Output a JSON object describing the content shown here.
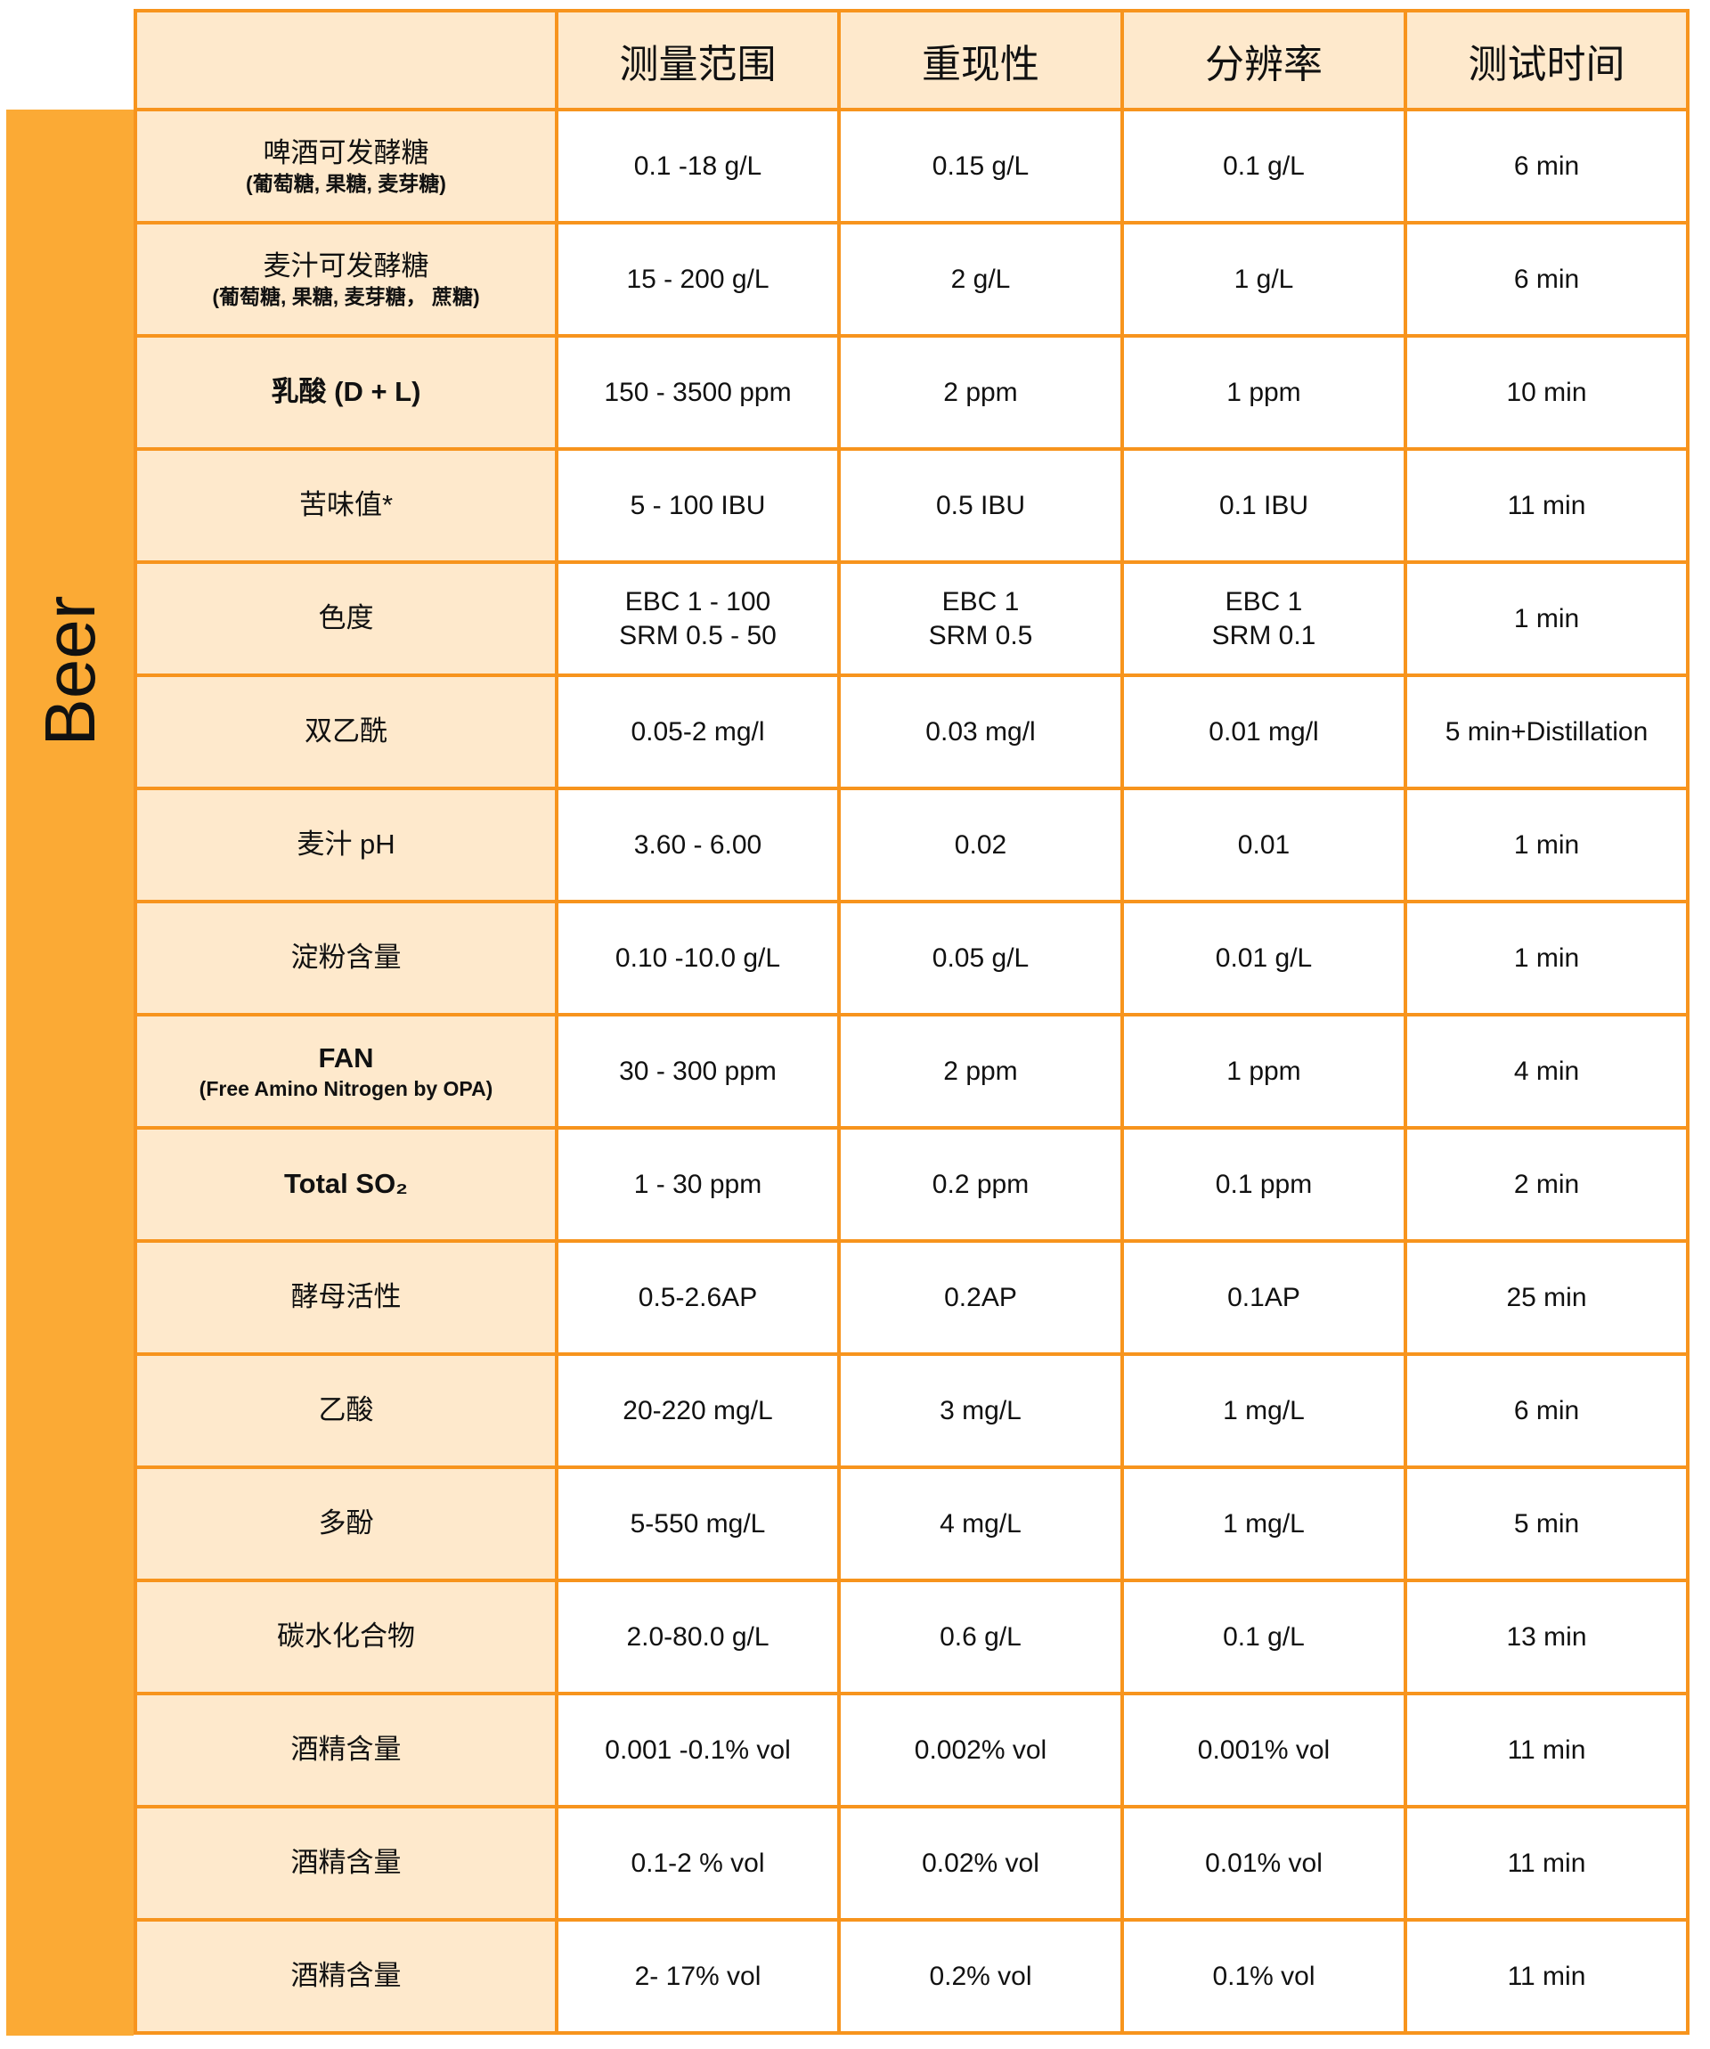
{
  "category_label": "Beer",
  "colors": {
    "border": "#f7941d",
    "category_bg": "#fbaa35",
    "header_bg": "#fee9cc"
  },
  "headers": [
    "",
    "测量范围",
    "重现性",
    "分辨率",
    "测试时间"
  ],
  "rows": [
    {
      "name": "啤酒可发酵糖",
      "sub": "(葡萄糖, 果糖, 麦芽糖)",
      "range": "0.1 -18 g/L",
      "repeat": "0.15 g/L",
      "resolution": "0.1 g/L",
      "time": "6 min"
    },
    {
      "name": "麦汁可发酵糖",
      "sub": "(葡萄糖, 果糖, 麦芽糖， 蔗糖)",
      "range": "15 - 200 g/L",
      "repeat": "2 g/L",
      "resolution": "1 g/L",
      "time": "6 min"
    },
    {
      "name": "乳酸 (D + L)",
      "range": "150 - 3500 ppm",
      "repeat": "2 ppm",
      "resolution": "1 ppm",
      "time": "10 min"
    },
    {
      "name": "苦味值*",
      "range": "5 - 100 IBU",
      "repeat": "0.5 IBU",
      "resolution": "0.1 IBU",
      "time": "11 min"
    },
    {
      "name": "色度",
      "range": "EBC 1 - 100",
      "range2": "SRM 0.5 - 50",
      "repeat": "EBC 1",
      "repeat2": "SRM 0.5",
      "resolution": "EBC 1",
      "resolution2": "SRM 0.1",
      "time": "1 min"
    },
    {
      "name": "双乙酰",
      "range": "0.05-2 mg/l",
      "repeat": "0.03 mg/l",
      "resolution": "0.01 mg/l",
      "time": "5 min+Distillation"
    },
    {
      "name": "麦汁 pH",
      "range": "3.60 - 6.00",
      "repeat": "0.02",
      "resolution": "0.01",
      "time": "1 min"
    },
    {
      "name": "淀粉含量",
      "range": "0.10 -10.0 g/L",
      "repeat": "0.05 g/L",
      "resolution": "0.01 g/L",
      "time": "1 min"
    },
    {
      "name": "FAN",
      "sub": "(Free Amino Nitrogen by OPA)",
      "range": "30 - 300 ppm",
      "repeat": "2 ppm",
      "resolution": "1 ppm",
      "time": "4 min"
    },
    {
      "name": "Total SO₂",
      "range": "1 - 30 ppm",
      "repeat": "0.2 ppm",
      "resolution": "0.1 ppm",
      "time": "2 min"
    },
    {
      "name": "酵母活性",
      "range": "0.5-2.6AP",
      "repeat": "0.2AP",
      "resolution": "0.1AP",
      "time": "25 min"
    },
    {
      "name": "乙酸",
      "range": "20-220 mg/L",
      "repeat": "3 mg/L",
      "resolution": "1 mg/L",
      "time": "6 min"
    },
    {
      "name": "多酚",
      "range": "5-550 mg/L",
      "repeat": "4 mg/L",
      "resolution": "1 mg/L",
      "time": "5 min"
    },
    {
      "name": "碳水化合物",
      "range": "2.0-80.0 g/L",
      "repeat": "0.6 g/L",
      "resolution": "0.1 g/L",
      "time": "13 min"
    },
    {
      "name": "酒精含量",
      "range": "0.001 -0.1% vol",
      "repeat": "0.002% vol",
      "resolution": "0.001% vol",
      "time": "11 min"
    },
    {
      "name": "酒精含量",
      "range": "0.1-2 % vol",
      "repeat": "0.02% vol",
      "resolution": "0.01% vol",
      "time": "11 min"
    },
    {
      "name": "酒精含量",
      "range": "2- 17% vol",
      "repeat": "0.2% vol",
      "resolution": "0.1% vol",
      "time": "11 min"
    }
  ]
}
